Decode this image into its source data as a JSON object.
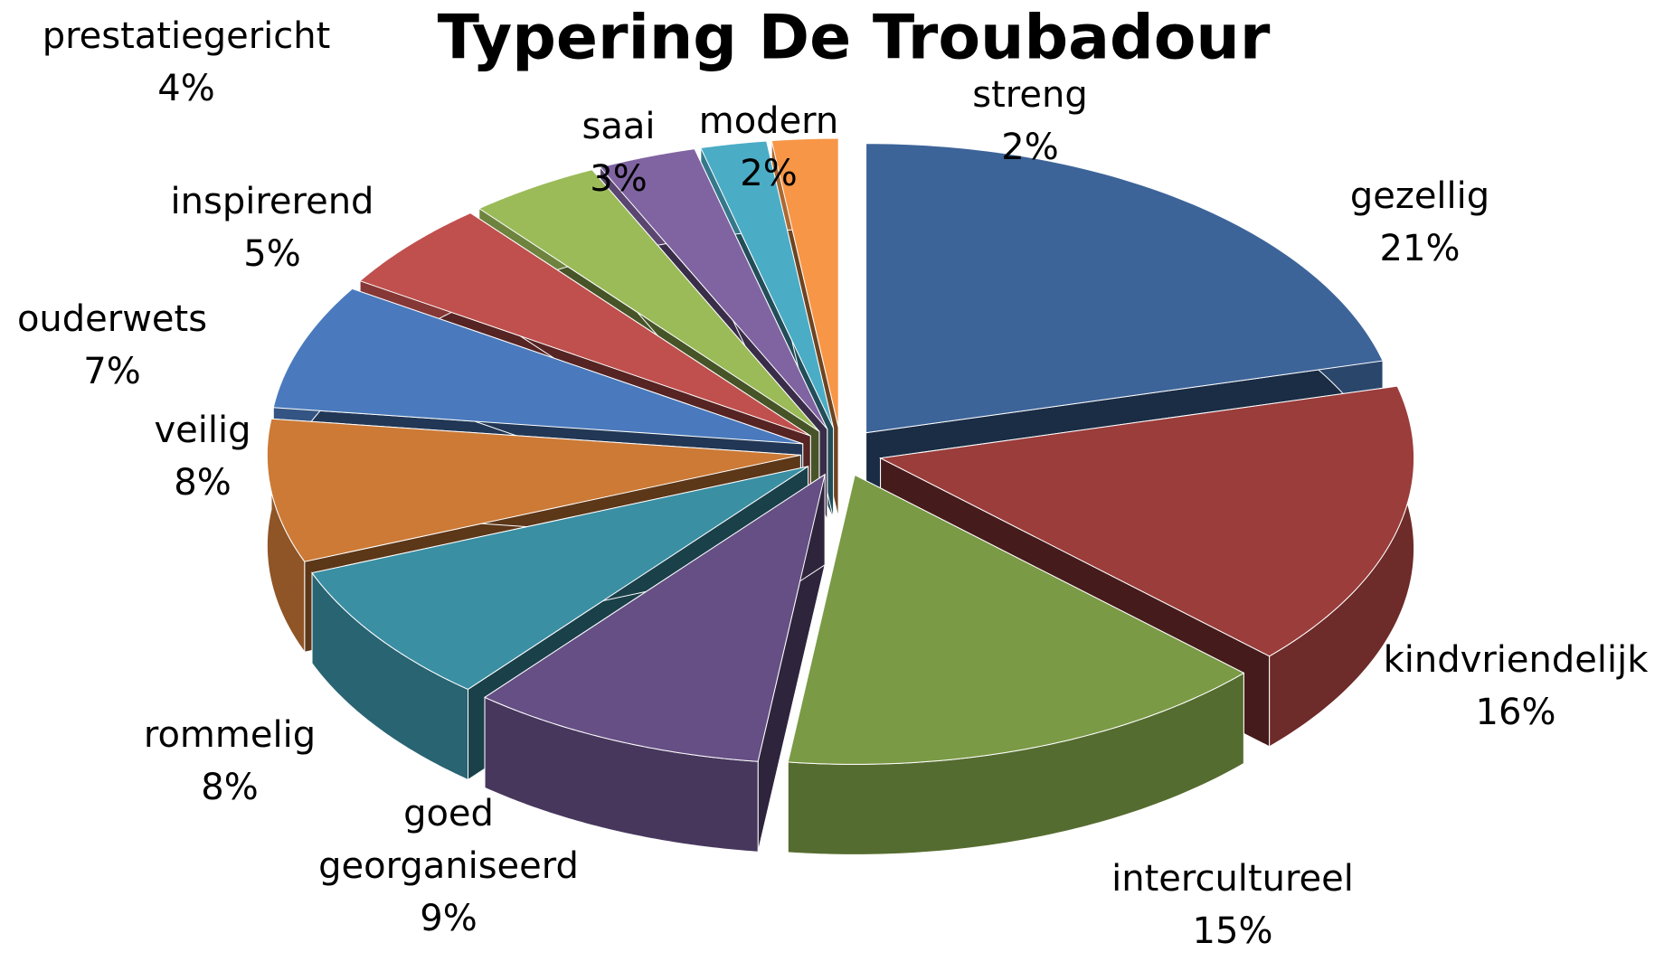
{
  "chart_data": {
    "type": "pie",
    "title": "Typering De Troubadour",
    "categories": [
      "gezellig",
      "kindvriendelijk",
      "intercultureel",
      "goed georganiseerd",
      "rommelig",
      "veilig",
      "ouderwets",
      "inspirerend",
      "prestatiegericht",
      "saai",
      "modern",
      "streng"
    ],
    "values": [
      21,
      16,
      15,
      9,
      8,
      8,
      7,
      5,
      4,
      3,
      2,
      2
    ],
    "value_labels": [
      "21%",
      "16%",
      "15%",
      "9%",
      "8%",
      "8%",
      "7%",
      "5%",
      "4%",
      "3%",
      "2%",
      "2%"
    ],
    "colors": [
      "#3d6499",
      "#9b3d3b",
      "#7a9a45",
      "#664f85",
      "#3a8fa3",
      "#cc7a36",
      "#4a7abd",
      "#c0504d",
      "#9bbb59",
      "#8064a2",
      "#4bacc6",
      "#f79646"
    ]
  }
}
